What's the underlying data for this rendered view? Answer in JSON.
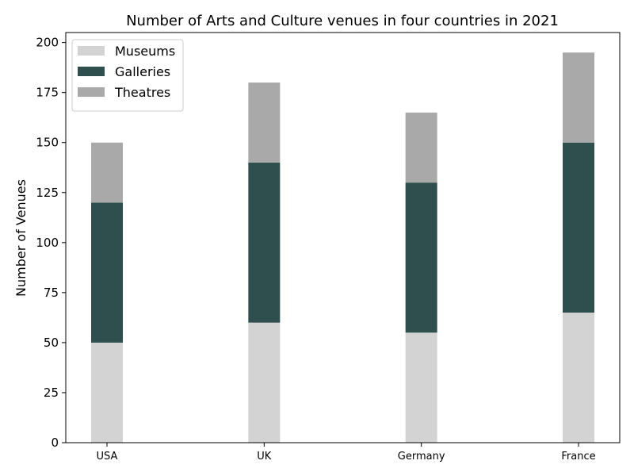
{
  "chart_data": {
    "type": "bar",
    "stacked": true,
    "title": "Number of Arts and Culture venues in four countries in 2021",
    "xlabel": "",
    "ylabel": "Number of Venues",
    "categories": [
      "USA",
      "UK",
      "Germany",
      "France"
    ],
    "series": [
      {
        "name": "Museums",
        "values": [
          50,
          60,
          55,
          65
        ],
        "color": "#d3d3d3"
      },
      {
        "name": "Galleries",
        "values": [
          70,
          80,
          75,
          85
        ],
        "color": "#2f4f4f"
      },
      {
        "name": "Theatres",
        "values": [
          30,
          40,
          35,
          45
        ],
        "color": "#a9a9a9"
      }
    ],
    "ylim": [
      0,
      205
    ],
    "yticks": [
      0,
      25,
      50,
      75,
      100,
      125,
      150,
      175,
      200
    ],
    "grid": false,
    "legend_position": "top-left"
  }
}
